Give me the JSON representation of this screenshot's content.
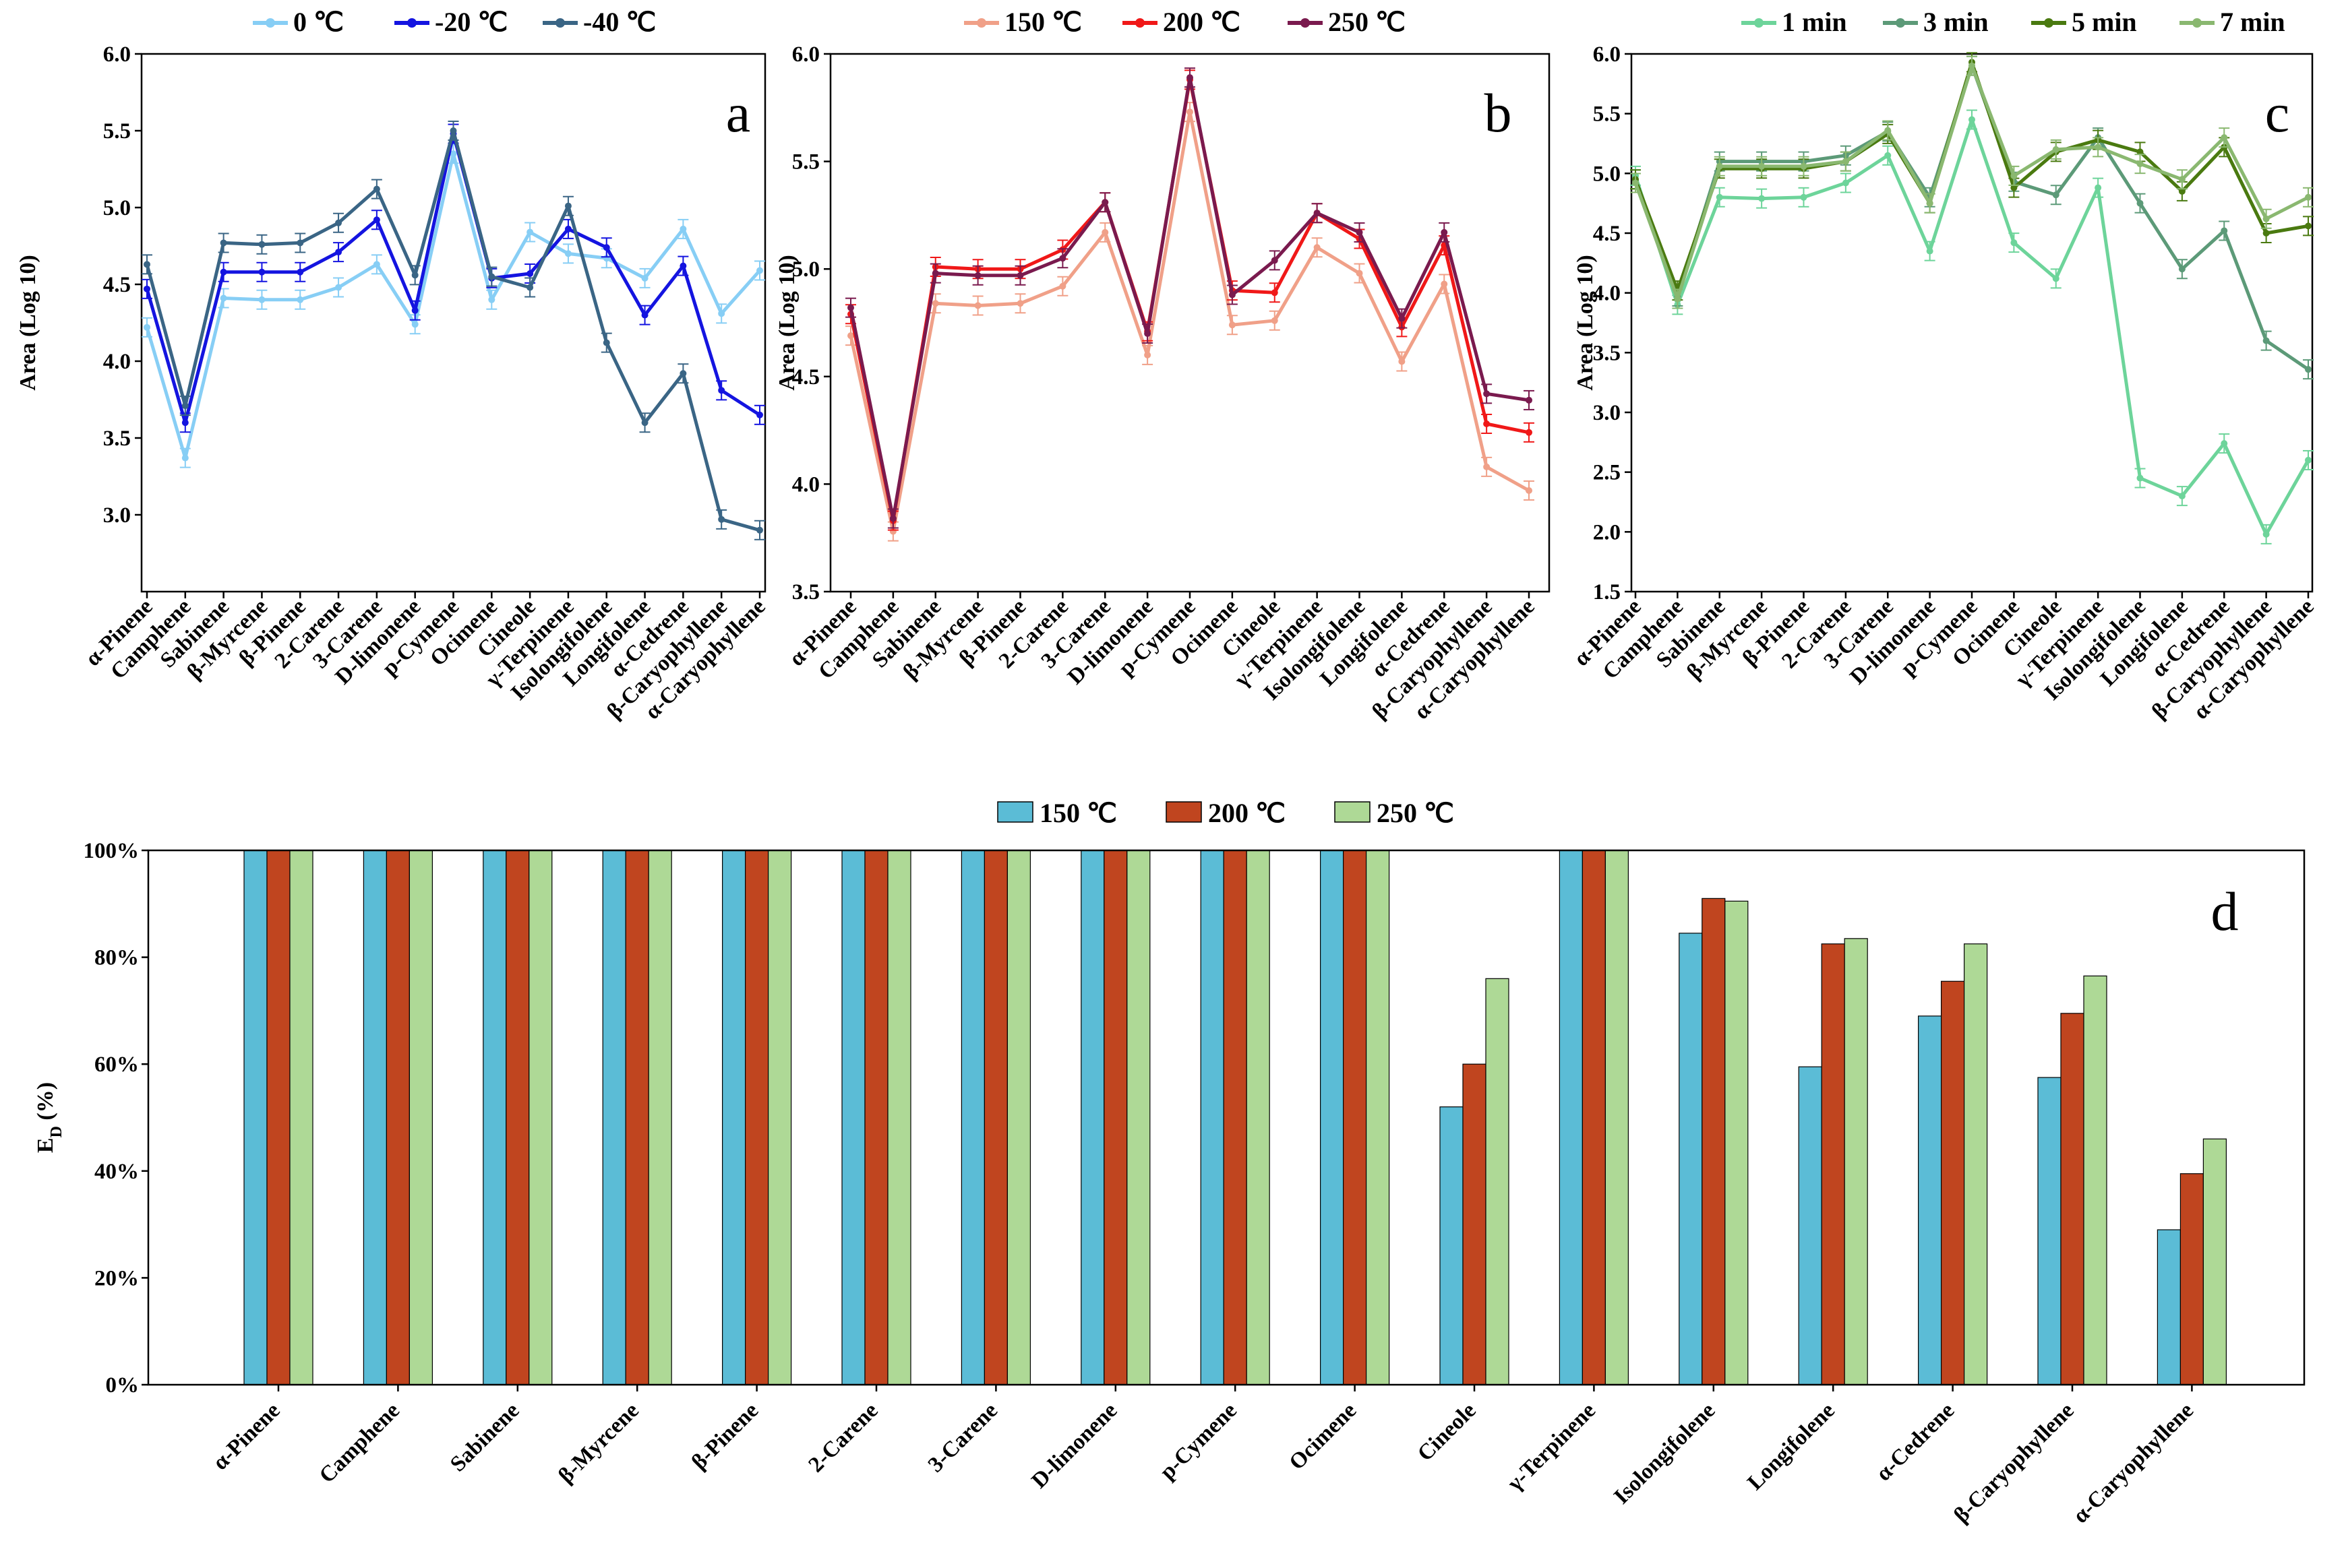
{
  "chart_data": [
    {
      "id": "a",
      "type": "line",
      "panel_label": "a",
      "ylabel": "Area (Log 10)",
      "ylim": [
        2.5,
        6.0
      ],
      "yticks": [
        3.0,
        3.5,
        4.0,
        4.5,
        5.0,
        5.5,
        6.0
      ],
      "ytick_labels": [
        "3.0",
        "3.5",
        "4.0",
        "4.5",
        "5.0",
        "5.5",
        "6.0"
      ],
      "legend_position": "top",
      "categories": [
        "α-Pinene",
        "Camphene",
        "Sabinene",
        "β-Myrcene",
        "β-Pinene",
        "2-Carene",
        "3-Carene",
        "D-limonene",
        "p-Cymene",
        "Ocimene",
        "Cineole",
        "γ-Terpinene",
        "Isolongifolene",
        "Longifolene",
        "α-Cedrene",
        "β-Caryophyllene",
        "α-Caryophyllene"
      ],
      "series": [
        {
          "name": "0 ℃",
          "color": "#87cef5",
          "values": [
            4.22,
            3.37,
            4.41,
            4.4,
            4.4,
            4.48,
            4.63,
            4.24,
            5.35,
            4.4,
            4.84,
            4.7,
            4.67,
            4.54,
            4.86,
            4.31,
            4.59
          ]
        },
        {
          "name": "-20 ℃",
          "color": "#1414e0",
          "values": [
            4.47,
            3.6,
            4.58,
            4.58,
            4.58,
            4.71,
            4.92,
            4.33,
            5.48,
            4.54,
            4.57,
            4.86,
            4.74,
            4.3,
            4.62,
            3.81,
            3.65
          ]
        },
        {
          "name": "-40 ℃",
          "color": "#3a6585",
          "values": [
            4.63,
            3.71,
            4.77,
            4.76,
            4.77,
            4.9,
            5.12,
            4.56,
            5.5,
            4.55,
            4.48,
            5.01,
            4.12,
            3.6,
            3.92,
            2.97,
            2.9
          ]
        }
      ]
    },
    {
      "id": "b",
      "type": "line",
      "panel_label": "b",
      "ylabel": "Area (Log 10)",
      "ylim": [
        3.5,
        6.0
      ],
      "yticks": [
        3.5,
        4.0,
        4.5,
        5.0,
        5.5,
        6.0
      ],
      "ytick_labels": [
        "3.5",
        "4.0",
        "4.5",
        "5.0",
        "5.5",
        "6.0"
      ],
      "legend_position": "top",
      "categories": [
        "α-Pinene",
        "Camphene",
        "Sabinene",
        "β-Myrcene",
        "β-Pinene",
        "2-Carene",
        "3-Carene",
        "D-limonene",
        "p-Cymene",
        "Ocimene",
        "Cineole",
        "γ-Terpinene",
        "Isolongifolene",
        "Longifolene",
        "α-Cedrene",
        "β-Caryophyllene",
        "α-Caryophyllene"
      ],
      "series": [
        {
          "name": "150 ℃",
          "color": "#f0a088",
          "values": [
            4.69,
            3.78,
            4.84,
            4.83,
            4.84,
            4.92,
            5.17,
            4.6,
            5.73,
            4.74,
            4.76,
            5.1,
            4.98,
            4.57,
            4.93,
            4.08,
            3.97
          ]
        },
        {
          "name": "200 ℃",
          "color": "#f01818",
          "values": [
            4.79,
            3.83,
            5.01,
            5.0,
            5.0,
            5.09,
            5.31,
            4.71,
            5.88,
            4.9,
            4.89,
            5.26,
            5.14,
            4.73,
            5.11,
            4.28,
            4.24
          ]
        },
        {
          "name": "250 ℃",
          "color": "#7a1a4e",
          "values": [
            4.82,
            3.84,
            4.98,
            4.97,
            4.97,
            5.05,
            5.31,
            4.7,
            5.89,
            4.88,
            5.04,
            5.26,
            5.17,
            4.77,
            5.17,
            4.42,
            4.39
          ]
        }
      ]
    },
    {
      "id": "c",
      "type": "line",
      "panel_label": "c",
      "ylabel": "Area (Log 10)",
      "ylim": [
        1.5,
        6.0
      ],
      "yticks": [
        1.5,
        2.0,
        2.5,
        3.0,
        3.5,
        4.0,
        4.5,
        5.0,
        5.5,
        6.0
      ],
      "ytick_labels": [
        "1.5",
        "2.0",
        "2.5",
        "3.0",
        "3.5",
        "4.0",
        "4.5",
        "5.0",
        "5.5",
        "6.0"
      ],
      "legend_position": "top",
      "categories": [
        "α-Pinene",
        "Camphene",
        "Sabinene",
        "β-Myrcene",
        "β-Pinene",
        "2-Carene",
        "3-Carene",
        "D-limonene",
        "p-Cymene",
        "Ocimene",
        "Cineole",
        "γ-Terpinene",
        "Isolongifolene",
        "Longifolene",
        "α-Cedrene",
        "β-Caryophyllene",
        "α-Caryophyllene"
      ],
      "series": [
        {
          "name": "1 min",
          "color": "#6dd49a",
          "values": [
            4.98,
            3.9,
            4.8,
            4.79,
            4.8,
            4.92,
            5.15,
            4.35,
            5.45,
            4.42,
            4.12,
            4.88,
            2.45,
            2.3,
            2.74,
            1.98,
            2.6
          ]
        },
        {
          "name": "3 min",
          "color": "#5c9a78",
          "values": [
            4.95,
            3.97,
            5.1,
            5.1,
            5.1,
            5.15,
            5.35,
            4.8,
            5.9,
            4.93,
            4.82,
            5.3,
            4.75,
            4.2,
            4.52,
            3.6,
            3.36
          ]
        },
        {
          "name": "5 min",
          "color": "#4a7a10",
          "values": [
            4.95,
            4.02,
            5.04,
            5.04,
            5.04,
            5.1,
            5.33,
            4.75,
            5.93,
            4.88,
            5.18,
            5.28,
            5.18,
            4.85,
            5.22,
            4.5,
            4.56
          ]
        },
        {
          "name": "7 min",
          "color": "#8ab870",
          "values": [
            4.92,
            3.95,
            5.06,
            5.06,
            5.06,
            5.1,
            5.36,
            4.75,
            5.9,
            4.98,
            5.2,
            5.22,
            5.08,
            4.95,
            5.3,
            4.62,
            4.8
          ]
        }
      ]
    },
    {
      "id": "d",
      "type": "bar",
      "panel_label": "d",
      "ylabel_main": "E",
      "ylabel_sub": "D",
      "ylabel_unit": " (%)",
      "ylim": [
        0,
        100
      ],
      "yticks": [
        0,
        20,
        40,
        60,
        80,
        100
      ],
      "ytick_labels": [
        "0%",
        "20%",
        "40%",
        "60%",
        "80%",
        "100%"
      ],
      "legend_position": "top",
      "categories": [
        "α-Pinene",
        "Camphene",
        "Sabinene",
        "β-Myrcene",
        "β-Pinene",
        "2-Carene",
        "3-Carene",
        "D-limonene",
        "p-Cymene",
        "Ocimene",
        "Cineole",
        "γ-Terpinene",
        "Isolongifolene",
        "Longifolene",
        "α-Cedrene",
        "β-Caryophyllene",
        "α-Caryophyllene"
      ],
      "series": [
        {
          "name": "150 ℃",
          "color": "#5bbcd6",
          "values": [
            100,
            100,
            100,
            100,
            100,
            100,
            100,
            100,
            100,
            100,
            52,
            100,
            84.5,
            59.5,
            69,
            57.5,
            29
          ]
        },
        {
          "name": "200 ℃",
          "color": "#c0451f",
          "values": [
            100,
            100,
            100,
            100,
            100,
            100,
            100,
            100,
            100,
            100,
            60,
            100,
            91,
            82.5,
            75.5,
            69.5,
            39.5
          ]
        },
        {
          "name": "250 ℃",
          "color": "#aed996",
          "values": [
            100,
            100,
            100,
            100,
            100,
            100,
            100,
            100,
            100,
            100,
            76,
            100,
            90.5,
            83.5,
            82.5,
            76.5,
            46
          ]
        }
      ]
    }
  ]
}
